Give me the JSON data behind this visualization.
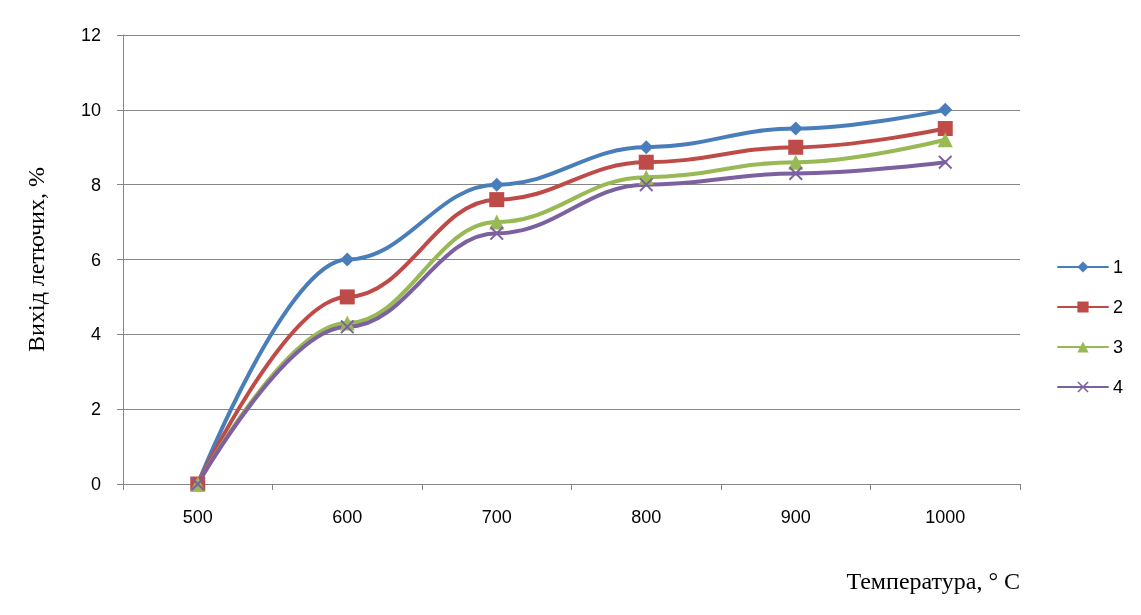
{
  "chart_data": {
    "type": "line",
    "xlabel": "Температура, ° С",
    "ylabel": "Вихід летючих, %",
    "categories": [
      "500",
      "600",
      "700",
      "800",
      "900",
      "1000"
    ],
    "series": [
      {
        "name": "1",
        "color": "#4a7ebb",
        "marker": "diamond",
        "values": [
          0,
          6,
          8,
          9,
          9.5,
          10
        ]
      },
      {
        "name": "2",
        "color": "#be4b48",
        "marker": "square",
        "values": [
          0,
          5,
          7.6,
          8.6,
          9,
          9.5
        ]
      },
      {
        "name": "3",
        "color": "#98b954",
        "marker": "triangle",
        "values": [
          0,
          4.3,
          7,
          8.2,
          8.6,
          9.2
        ]
      },
      {
        "name": "4",
        "color": "#7d60a0",
        "marker": "cross",
        "values": [
          0,
          4.2,
          6.7,
          8,
          8.3,
          8.6
        ]
      }
    ],
    "ylim": [
      0,
      12
    ],
    "yticks": [
      0,
      2,
      4,
      6,
      8,
      10,
      12
    ],
    "grid": "y",
    "legend": "right",
    "line_style": "solid"
  }
}
